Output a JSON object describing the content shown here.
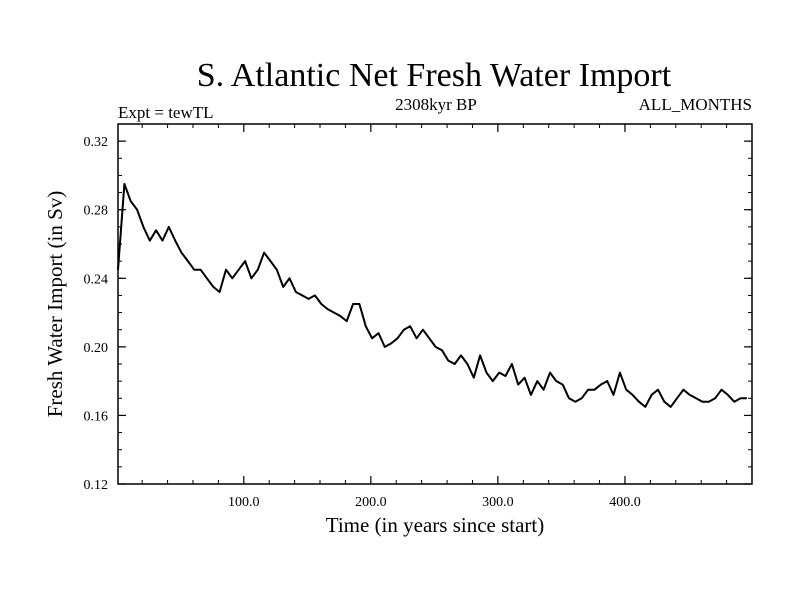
{
  "chart_data": {
    "type": "line",
    "title": "S. Atlantic Net Fresh Water Import",
    "subtitle_left": "Expt = tewTL",
    "subtitle_center": "2308kyr BP",
    "subtitle_right": "ALL_MONTHS",
    "xlabel": "Time (in years since start)",
    "ylabel": "Fresh Water Import (in Sv)",
    "xlim": [
      1,
      500
    ],
    "ylim": [
      0.12,
      0.33
    ],
    "x_ticks": [
      {
        "value": 100,
        "label": "100.0"
      },
      {
        "value": 200,
        "label": "200.0"
      },
      {
        "value": 300,
        "label": "300.0"
      },
      {
        "value": 400,
        "label": "400.0"
      }
    ],
    "y_ticks": [
      {
        "value": 0.12,
        "label": "0.12"
      },
      {
        "value": 0.16,
        "label": "0.16"
      },
      {
        "value": 0.2,
        "label": "0.20"
      },
      {
        "value": 0.24,
        "label": "0.24"
      },
      {
        "value": 0.28,
        "label": "0.28"
      },
      {
        "value": 0.32,
        "label": "0.32"
      }
    ],
    "series": [
      {
        "name": "Net Fresh Water Import",
        "color": "#000000",
        "x_start": 1,
        "x_step": 5,
        "values": [
          0.245,
          0.295,
          0.285,
          0.28,
          0.27,
          0.262,
          0.268,
          0.262,
          0.27,
          0.262,
          0.255,
          0.25,
          0.245,
          0.245,
          0.24,
          0.235,
          0.232,
          0.245,
          0.24,
          0.245,
          0.25,
          0.24,
          0.245,
          0.255,
          0.25,
          0.245,
          0.235,
          0.24,
          0.232,
          0.23,
          0.228,
          0.23,
          0.225,
          0.222,
          0.22,
          0.218,
          0.215,
          0.225,
          0.225,
          0.212,
          0.205,
          0.208,
          0.2,
          0.202,
          0.205,
          0.21,
          0.212,
          0.205,
          0.21,
          0.205,
          0.2,
          0.198,
          0.192,
          0.19,
          0.195,
          0.19,
          0.182,
          0.195,
          0.185,
          0.18,
          0.185,
          0.183,
          0.19,
          0.178,
          0.182,
          0.172,
          0.18,
          0.175,
          0.185,
          0.18,
          0.178,
          0.17,
          0.168,
          0.17,
          0.175,
          0.175,
          0.178,
          0.18,
          0.172,
          0.185,
          0.175,
          0.172,
          0.168,
          0.165,
          0.172,
          0.175,
          0.168,
          0.165,
          0.17,
          0.175,
          0.172,
          0.17,
          0.168,
          0.168,
          0.17,
          0.175,
          0.172,
          0.168,
          0.17,
          0.17
        ]
      }
    ]
  }
}
